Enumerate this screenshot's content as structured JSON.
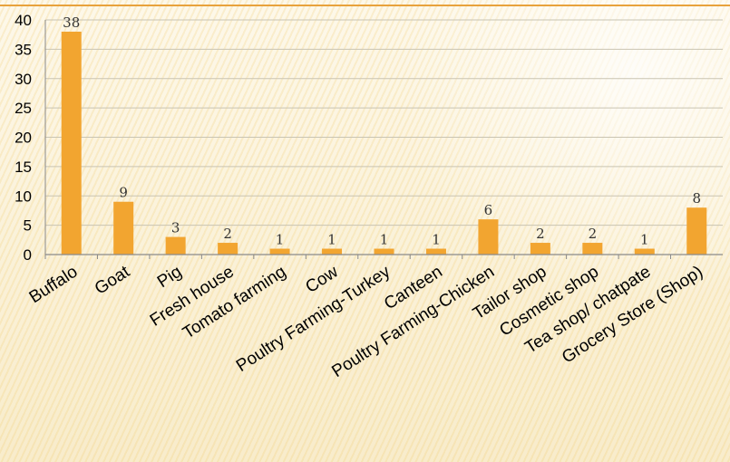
{
  "chart_data": {
    "type": "bar",
    "title": "",
    "xlabel": "",
    "ylabel": "",
    "categories": [
      "Buffalo",
      "Goat",
      "Pig",
      "Fresh house",
      "Tomato farming",
      "Cow",
      "Poultry Farming-Turkey",
      "Canteen",
      "Poultry Farming-Chicken",
      "Tailor shop",
      "Cosmetic shop",
      "Tea shop/ chatpate",
      "Grocery Store (Shop)"
    ],
    "values": [
      38,
      9,
      3,
      2,
      1,
      1,
      1,
      1,
      6,
      2,
      2,
      1,
      8
    ],
    "data_labels": [
      "38",
      "9",
      "3",
      "2",
      "1",
      "1",
      "1",
      "1",
      "6",
      "2",
      "2",
      "1",
      "8"
    ],
    "ylim": [
      0,
      40
    ],
    "yticks": [
      0,
      5,
      10,
      15,
      20,
      25,
      30,
      35,
      40
    ],
    "ytick_labels": [
      "0",
      "5",
      "10",
      "15",
      "20",
      "25",
      "30",
      "35",
      "40"
    ],
    "grid": true,
    "legend": "none",
    "colors": {
      "bar": "#f2a530",
      "grid": "#c9c4b2",
      "axis": "#8a8a8a",
      "text": "#000000"
    }
  }
}
